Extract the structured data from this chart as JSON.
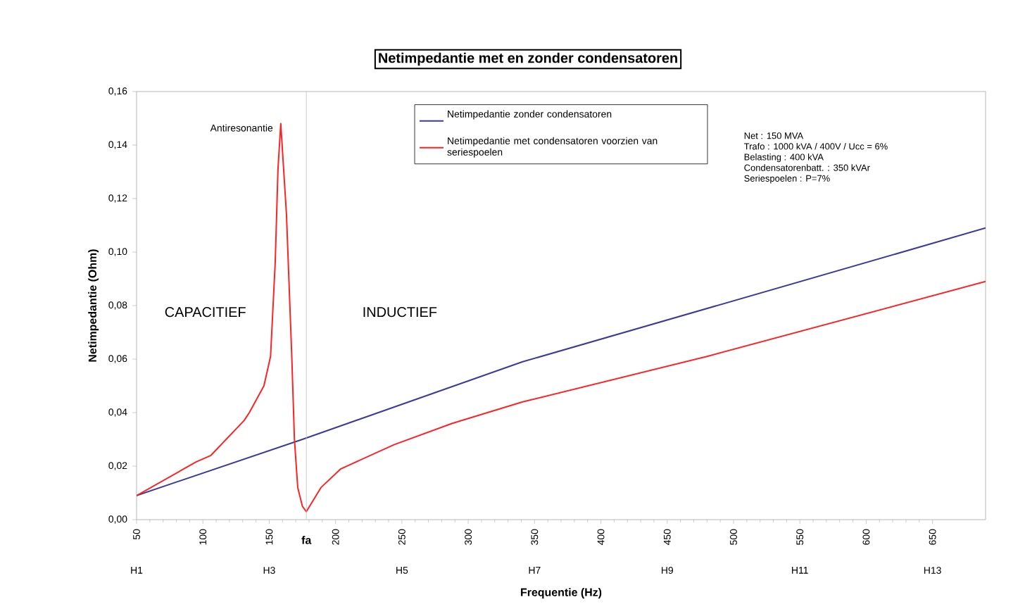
{
  "chart_data": {
    "type": "line",
    "title": "Netimpedantie met en zonder condensatoren",
    "xlabel": "Frequentie (Hz)",
    "ylabel": "Netimpedantie (Ohm)",
    "xlim": [
      50,
      690
    ],
    "ylim": [
      0,
      0.16
    ],
    "xticks": [
      50,
      100,
      150,
      200,
      250,
      300,
      350,
      400,
      450,
      500,
      550,
      600,
      650
    ],
    "yticks": [
      {
        "value": 0,
        "label": "0,00"
      },
      {
        "value": 0.02,
        "label": "0,02"
      },
      {
        "value": 0.04,
        "label": "0,04"
      },
      {
        "value": 0.06,
        "label": "0,06"
      },
      {
        "value": 0.08,
        "label": "0,08"
      },
      {
        "value": 0.1,
        "label": "0,10"
      },
      {
        "value": 0.12,
        "label": "0,12"
      },
      {
        "value": 0.14,
        "label": "0,14"
      },
      {
        "value": 0.16,
        "label": "0,16"
      }
    ],
    "series": [
      {
        "name": "Netimpedantie zonder condensatoren",
        "color": "#3a3a9c",
        "x": [
          50,
          175,
          341,
          690
        ],
        "values": [
          0.009,
          0.03,
          0.059,
          0.109
        ]
      },
      {
        "name": "Netimpedantie met condensatoren voorzien van seriespoelen",
        "color": "#ff2222",
        "x": [
          50,
          95,
          106,
          131,
          135,
          146,
          151,
          154.5,
          156.6,
          158.7,
          163,
          167,
          169,
          171.5,
          175,
          178,
          189,
          204,
          244,
          288,
          341,
          480,
          690
        ],
        "values": [
          0.009,
          0.0216,
          0.024,
          0.037,
          0.04,
          0.05,
          0.061,
          0.096,
          0.131,
          0.148,
          0.114,
          0.061,
          0.03,
          0.012,
          0.005,
          0.003,
          0.012,
          0.019,
          0.028,
          0.036,
          0.044,
          0.061,
          0.089
        ]
      }
    ],
    "ref_lines": [
      {
        "axis": "x",
        "value": 178,
        "label": "fa",
        "color": "#c0c0c0"
      }
    ],
    "annotations": [
      {
        "text": "Antiresonantie",
        "x": 158.7,
        "y": 0.148
      },
      "CAPACITIEF",
      "INDUCTIEF",
      "Net   :  150 MVA",
      "Trafo : 1000 kVA / 400V  / Ucc = 6%",
      "Belasting : 400 kVA",
      "Condensatorenbatt. : 350 kVAr",
      "Seriespoelen : P=7%",
      "H1",
      "H3",
      "H5",
      "H7",
      "H9",
      "H11",
      "H13"
    ],
    "legend": "top",
    "grid": false,
    "marker": "none",
    "line_style": "solid"
  }
}
